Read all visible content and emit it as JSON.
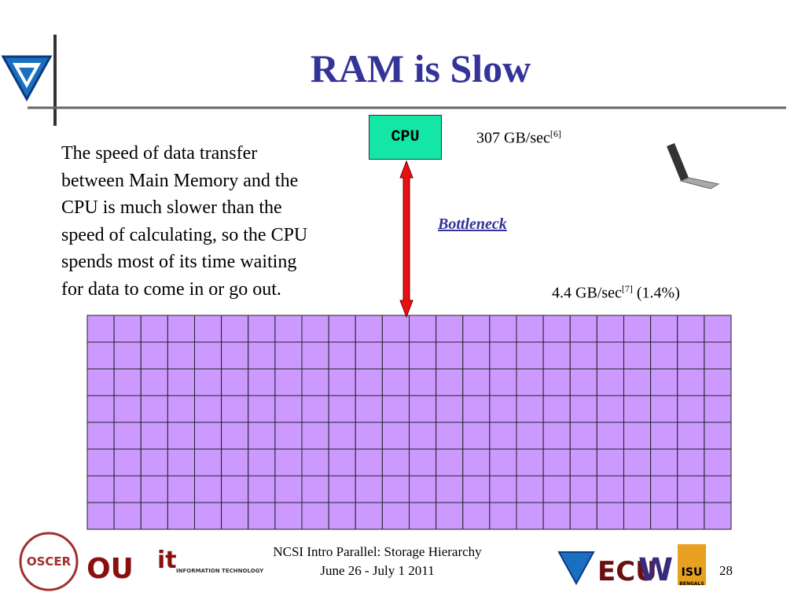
{
  "slide": {
    "title": "RAM is Slow",
    "body_lines": [
      "The speed of data transfer",
      "between Main Memory and the",
      "CPU is much slower than the",
      "speed of calculating, so the CPU",
      "spends most of its time waiting",
      "for data to come in or go out."
    ],
    "cpu_label": "CPU",
    "cpu_speed": {
      "text": "307 GB/sec",
      "ref": "[6]"
    },
    "bottleneck": "Bottleneck",
    "memory_speed": {
      "text": "4.4 GB/sec",
      "ref": "[7]",
      "ratio": "(1.4%)"
    },
    "footer": {
      "line1": "NCSI Intro Parallel: Storage Hierarchy",
      "line2": "June 26 - July 1 2011",
      "page": "28"
    },
    "logos": {
      "oscer": "OSCER",
      "ou": "OU",
      "it": "it",
      "it_caption": "INFORMATION TECHNOLOGY",
      "ecu": "ECU",
      "w": "W",
      "isu": "ISU",
      "bengals": "BENGALS"
    }
  }
}
